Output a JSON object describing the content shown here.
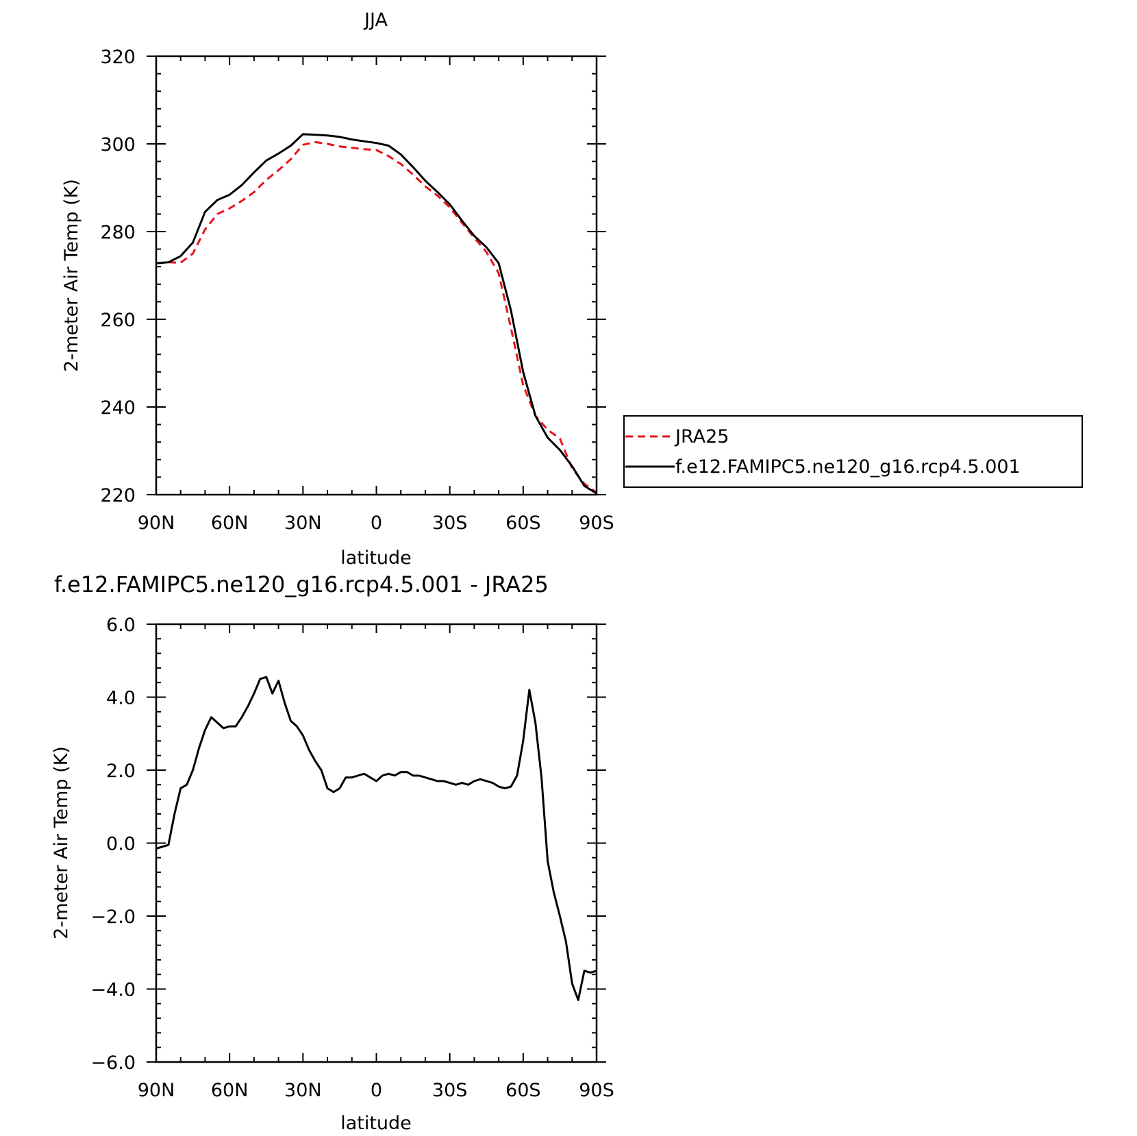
{
  "chart_data": [
    {
      "type": "line",
      "title": "JJA",
      "xlabel": "latitude",
      "ylabel": "2-meter Air Temp (K)",
      "xlim": [
        90,
        -90
      ],
      "ylim": [
        220,
        320
      ],
      "x_tick_values": [
        90,
        60,
        30,
        0,
        -30,
        -60,
        -90
      ],
      "x_tick_labels": [
        "90N",
        "60N",
        "30N",
        "0",
        "30S",
        "60S",
        "90S"
      ],
      "y_tick_values": [
        220,
        240,
        260,
        280,
        300,
        320
      ],
      "y_tick_labels": [
        "220",
        "240",
        "260",
        "280",
        "300",
        "320"
      ],
      "grid": false,
      "legend": {
        "placement": "outside-right",
        "entries": [
          {
            "label": "JRA25",
            "color": "#e8141b",
            "dash": "dashed"
          },
          {
            "label": "f.e12.FAMIPC5.ne120_g16.rcp4.5.001",
            "color": "#000000",
            "dash": "solid"
          }
        ]
      },
      "series": [
        {
          "name": "JRA25",
          "color": "#e8141b",
          "dash": "dashed",
          "x": [
            90,
            85,
            80,
            75,
            70,
            65,
            60,
            55,
            50,
            45,
            40,
            35,
            30,
            25,
            20,
            15,
            10,
            5,
            0,
            -5,
            -10,
            -15,
            -20,
            -25,
            -30,
            -35,
            -40,
            -45,
            -50,
            -55,
            -60,
            -65,
            -70,
            -75,
            -80,
            -85,
            -90
          ],
          "y": [
            272.8,
            273.0,
            272.9,
            275.0,
            280.5,
            284.0,
            285.3,
            287.0,
            289.0,
            291.8,
            294.0,
            296.5,
            299.8,
            300.4,
            300.0,
            299.4,
            299.1,
            298.8,
            298.6,
            297.2,
            295.4,
            293.0,
            290.3,
            288.2,
            285.5,
            282.0,
            278.6,
            275.3,
            270.5,
            258.0,
            245.0,
            238.0,
            234.8,
            232.8,
            226.0,
            222.5,
            220.5
          ]
        },
        {
          "name": "f.e12.FAMIPC5.ne120_g16.rcp4.5.001",
          "color": "#000000",
          "dash": "solid",
          "x": [
            90,
            85,
            80,
            75,
            70,
            65,
            60,
            55,
            50,
            45,
            40,
            35,
            30,
            25,
            20,
            15,
            10,
            5,
            0,
            -5,
            -10,
            -15,
            -20,
            -25,
            -30,
            -35,
            -40,
            -45,
            -50,
            -55,
            -60,
            -65,
            -70,
            -75,
            -80,
            -85,
            -90
          ],
          "y": [
            272.8,
            273.0,
            274.4,
            277.5,
            284.5,
            287.2,
            288.4,
            290.6,
            293.5,
            296.2,
            297.8,
            299.6,
            302.2,
            302.1,
            301.9,
            301.6,
            301.0,
            300.6,
            300.2,
            299.6,
            297.6,
            294.7,
            291.6,
            289.0,
            286.2,
            282.5,
            279.0,
            276.4,
            272.8,
            262.0,
            248.0,
            238.0,
            233.0,
            230.2,
            226.5,
            222.0,
            220.3
          ]
        }
      ]
    },
    {
      "type": "line",
      "title": "f.e12.FAMIPC5.ne120_g16.rcp4.5.001 - JRA25",
      "xlabel": "latitude",
      "ylabel": "2-meter Air Temp (K)",
      "xlim": [
        90,
        -90
      ],
      "ylim": [
        -6,
        6
      ],
      "x_tick_values": [
        90,
        60,
        30,
        0,
        -30,
        -60,
        -90
      ],
      "x_tick_labels": [
        "90N",
        "60N",
        "30N",
        "0",
        "30S",
        "60S",
        "90S"
      ],
      "y_tick_values": [
        -6,
        -4,
        -2,
        0,
        2,
        4,
        6
      ],
      "y_tick_labels": [
        "−6.0",
        "−4.0",
        "−2.0",
        "0.0",
        "2.0",
        "4.0",
        "6.0"
      ],
      "grid": false,
      "series": [
        {
          "color": "#000000",
          "dash": "solid",
          "x": [
            90,
            85,
            82.5,
            80,
            77.5,
            75,
            72.5,
            70,
            67.5,
            65,
            62.5,
            60,
            57.5,
            55,
            52.5,
            50,
            47.5,
            45,
            42.5,
            40,
            37.5,
            35,
            32.5,
            30,
            27.5,
            25,
            22.5,
            20,
            17.5,
            15,
            12.5,
            10,
            7.5,
            5,
            2.5,
            0,
            -2.5,
            -5,
            -7.5,
            -10,
            -12.5,
            -15,
            -17.5,
            -20,
            -22.5,
            -25,
            -27.5,
            -30,
            -32.5,
            -35,
            -37.5,
            -40,
            -42.5,
            -45,
            -47.5,
            -50,
            -52.5,
            -55,
            -57.5,
            -60,
            -62.5,
            -65,
            -67.5,
            -70,
            -72.5,
            -75,
            -77.5,
            -80,
            -82.5,
            -85,
            -87.5,
            -90
          ],
          "y": [
            -0.15,
            -0.05,
            0.8,
            1.5,
            1.6,
            2.0,
            2.6,
            3.1,
            3.45,
            3.3,
            3.15,
            3.2,
            3.2,
            3.45,
            3.75,
            4.1,
            4.5,
            4.55,
            4.1,
            4.45,
            3.85,
            3.35,
            3.2,
            2.95,
            2.55,
            2.25,
            2.0,
            1.5,
            1.4,
            1.5,
            1.8,
            1.8,
            1.85,
            1.9,
            1.8,
            1.7,
            1.85,
            1.9,
            1.85,
            1.95,
            1.95,
            1.85,
            1.85,
            1.8,
            1.75,
            1.7,
            1.7,
            1.65,
            1.6,
            1.65,
            1.6,
            1.7,
            1.75,
            1.7,
            1.65,
            1.55,
            1.5,
            1.55,
            1.85,
            2.8,
            4.2,
            3.3,
            1.8,
            -0.5,
            -1.35,
            -2.0,
            -2.7,
            -3.85,
            -4.3,
            -3.5,
            -3.55,
            -3.5
          ]
        }
      ]
    }
  ]
}
